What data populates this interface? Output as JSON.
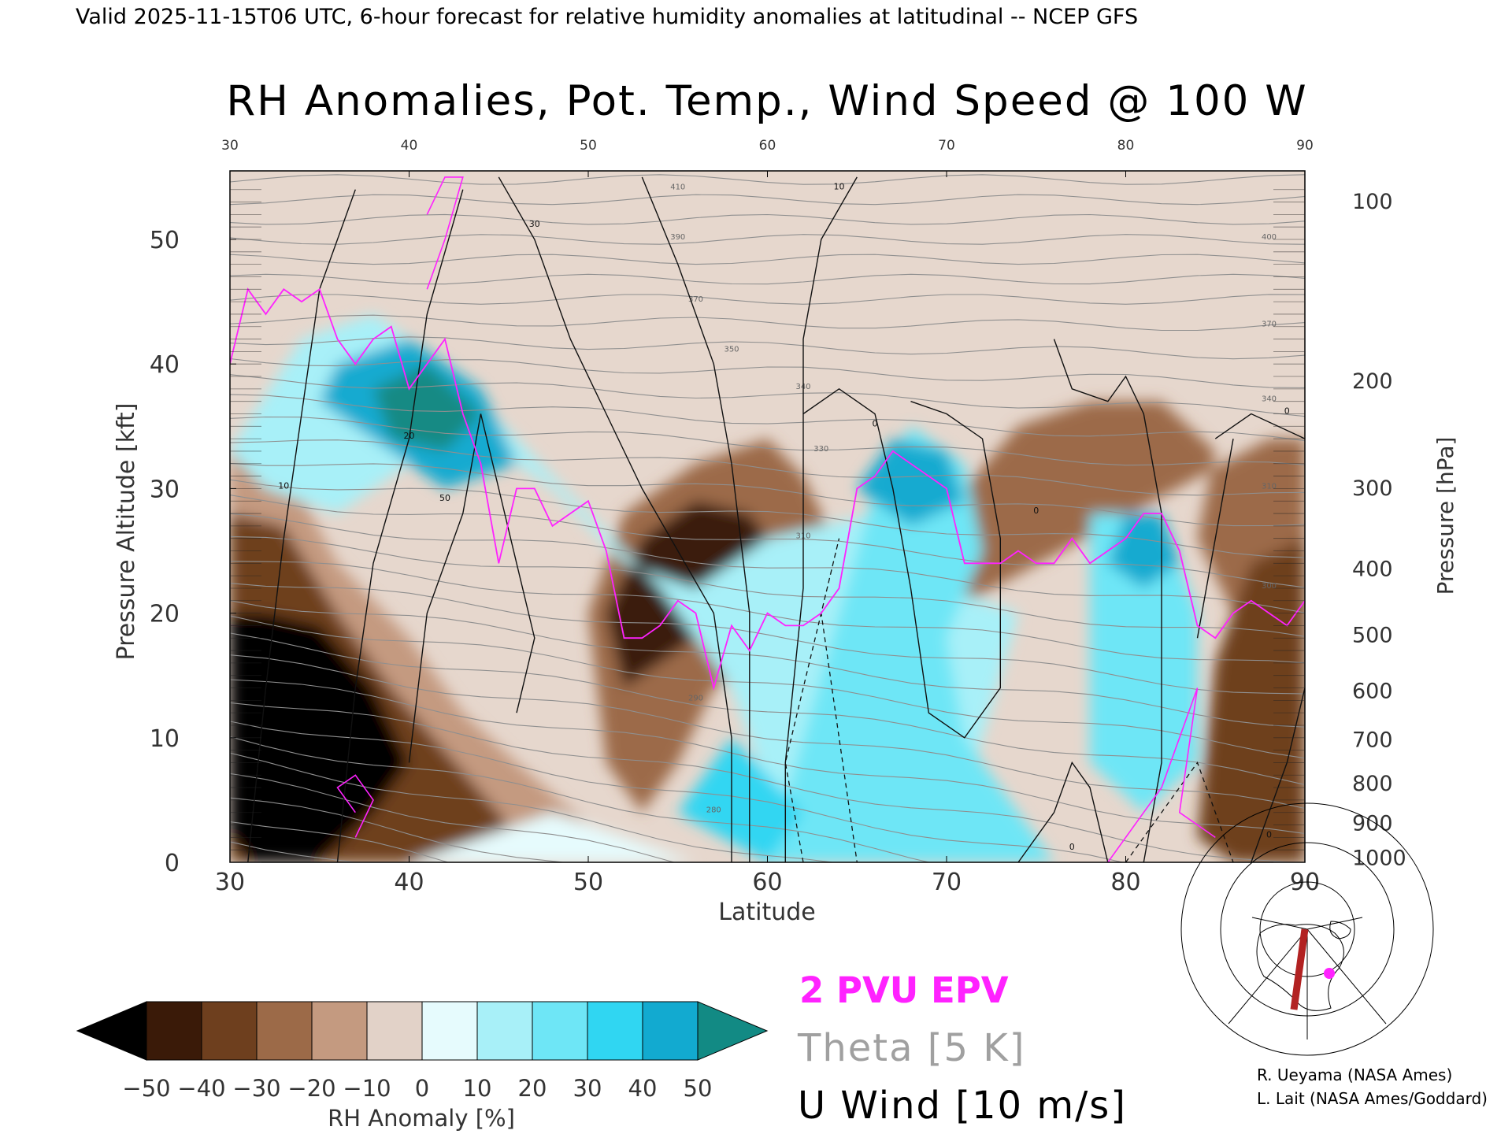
{
  "header": {
    "valid_line": "Valid 2025-11-15T06 UTC, 6-hour forecast for relative humidity anomalies at latitudinal -- NCEP GFS",
    "title": "RH Anomalies, Pot. Temp., Wind Speed @ 100 W"
  },
  "chart_data": {
    "type": "heatmap",
    "title": "RH Anomalies, Pot. Temp., Wind Speed @ 100 W",
    "xlabel": "Latitude",
    "ylabel": "Pressure Altitude [kft]",
    "y2label": "Pressure [hPa]",
    "xlim": [
      30,
      90
    ],
    "ylim": [
      0,
      55.5
    ],
    "x_ticks": [
      30,
      40,
      50,
      60,
      70,
      80,
      90
    ],
    "y_ticks": [
      0,
      10,
      20,
      30,
      40,
      50
    ],
    "pressure_ticks": [
      {
        "hPa": 100,
        "kft": 53.1
      },
      {
        "hPa": 200,
        "kft": 38.7
      },
      {
        "hPa": 300,
        "kft": 30.1
      },
      {
        "hPa": 400,
        "kft": 23.6
      },
      {
        "hPa": 500,
        "kft": 18.3
      },
      {
        "hPa": 600,
        "kft": 13.8
      },
      {
        "hPa": 700,
        "kft": 9.9
      },
      {
        "hPa": 800,
        "kft": 6.4
      },
      {
        "hPa": 900,
        "kft": 3.2
      },
      {
        "hPa": 1000,
        "kft": 0.4
      }
    ],
    "colorbar": {
      "label": "RH Anomaly [%]",
      "ticks": [
        -50,
        -40,
        -30,
        -20,
        -10,
        0,
        10,
        20,
        30,
        40,
        50
      ],
      "colors": [
        "#000000",
        "#3a1a08",
        "#6e3f1e",
        "#9c6a48",
        "#c49a80",
        "#e2d2c8",
        "#e6fbfd",
        "#a8f0f8",
        "#6ee6f6",
        "#30d6f2",
        "#12aad0",
        "#128a84"
      ]
    },
    "theta_levels": [
      280,
      290,
      300,
      310,
      320,
      330,
      340,
      350,
      360,
      370,
      380,
      390,
      400,
      410,
      420
    ],
    "wind_levels": [
      0,
      10,
      20,
      30,
      40,
      50
    ],
    "epv_2pvu_line": {
      "x": [
        30,
        31,
        32,
        33,
        34,
        35,
        36,
        37,
        38,
        39,
        40,
        41,
        42,
        43,
        44,
        45,
        46,
        47,
        48,
        49,
        50,
        51,
        52,
        53,
        54,
        55,
        56,
        57,
        58,
        59,
        60,
        61,
        62,
        63,
        64,
        65,
        66,
        67,
        68,
        69,
        70,
        71,
        72,
        73,
        74,
        75,
        76,
        77,
        78,
        79,
        80,
        81,
        82,
        83,
        84,
        85,
        86,
        87,
        88,
        89,
        90
      ],
      "y": [
        40,
        46,
        44,
        46,
        45,
        46,
        42,
        40,
        42,
        43,
        38,
        40,
        42,
        36,
        32,
        24,
        30,
        30,
        27,
        28,
        29,
        25,
        18,
        18,
        19,
        21,
        20,
        14,
        19,
        17,
        20,
        19,
        19,
        20,
        22,
        30,
        31,
        33,
        32,
        31,
        30,
        24,
        24,
        24,
        25,
        24,
        24,
        26,
        24,
        25,
        26,
        28,
        28,
        25,
        19,
        18,
        20,
        21,
        20,
        19,
        21
      ]
    },
    "series": [
      {
        "name": "2 PVU EPV",
        "color": "#ff22ff"
      },
      {
        "name": "Theta [5 K]",
        "color": "#999999"
      },
      {
        "name": "U Wind [10 m/s]",
        "color": "#000000"
      }
    ]
  },
  "legend": {
    "epv": "2 PVU EPV",
    "theta": "Theta [5 K]",
    "wind": "U Wind [10 m/s]"
  },
  "credits": {
    "line1": "R. Ueyama (NASA Ames)",
    "line2": "L. Lait (NASA Ames/Goddard)"
  }
}
